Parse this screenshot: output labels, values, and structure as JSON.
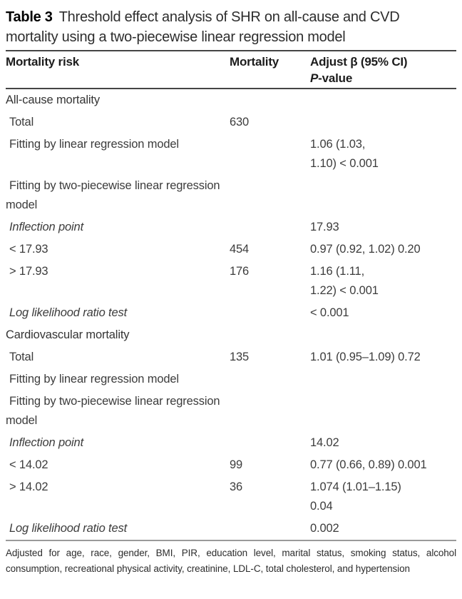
{
  "title": {
    "label": "Table 3",
    "text": "Threshold effect analysis of SHR on all-cause and CVD\nmortality using a two-piecewise linear regression model"
  },
  "header": {
    "col1": "Mortality risk",
    "col2": "Mortality",
    "col3_line1": "Adjust β (95% CI)",
    "col3_line2_italic": "P",
    "col3_line2_rest": "-value"
  },
  "rows": [
    {
      "risk": "All-cause mortality",
      "mortality": "",
      "value": "",
      "type": "section"
    },
    {
      "risk": "Total",
      "mortality": "630",
      "value": "",
      "type": "plain"
    },
    {
      "risk": "Fitting by linear regression model",
      "mortality": "",
      "value": "1.06 (1.03,\n1.10) < 0.001",
      "type": "plain"
    },
    {
      "risk": "Fitting by two-piecewise linear regression model",
      "mortality": "",
      "value": "",
      "type": "plain"
    },
    {
      "risk": "Inflection point",
      "mortality": "",
      "value": "17.93",
      "type": "italic"
    },
    {
      "risk": "< 17.93",
      "mortality": "454",
      "value": "0.97 (0.92, 1.02) 0.20",
      "type": "plain"
    },
    {
      "risk": "> 17.93",
      "mortality": "176",
      "value": "1.16 (1.11,\n1.22) < 0.001",
      "type": "plain"
    },
    {
      "risk": "Log likelihood ratio test",
      "mortality": "",
      "value": "< 0.001",
      "type": "italic"
    },
    {
      "risk": "Cardiovascular mortality",
      "mortality": "",
      "value": "",
      "type": "section"
    },
    {
      "risk": "Total",
      "mortality": "135",
      "value": "1.01 (0.95–1.09) 0.72",
      "type": "plain"
    },
    {
      "risk": "Fitting by linear regression model",
      "mortality": "",
      "value": "",
      "type": "plain"
    },
    {
      "risk": "Fitting by two-piecewise linear regression model",
      "mortality": "",
      "value": "",
      "type": "plain"
    },
    {
      "risk": "Inflection point",
      "mortality": "",
      "value": "14.02",
      "type": "italic"
    },
    {
      "risk": "< 14.02",
      "mortality": "99",
      "value": "0.77 (0.66, 0.89) 0.001",
      "type": "plain"
    },
    {
      "risk": "> 14.02",
      "mortality": "36",
      "value": "1.074 (1.01–1.15)\n0.04",
      "type": "plain"
    },
    {
      "risk": "Log likelihood ratio test",
      "mortality": "",
      "value": "0.002",
      "type": "italic"
    }
  ],
  "footnote": "Adjusted for age, race, gender, BMI, PIR, education level, marital status, smoking status, alcohol consumption, recreational physical activity, creatinine, LDL-C, total cholesterol, and hypertension"
}
